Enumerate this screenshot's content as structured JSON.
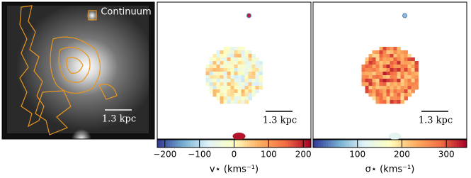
{
  "chart_data": [
    {
      "type": "image",
      "annotation": "Continuum",
      "scale_bar": "1.3 kpc"
    },
    {
      "type": "colormap",
      "scale_bar": "1.3 kpc",
      "colorbar_label": "v⋆ (kms⁻¹)",
      "colormap": [
        "#313695",
        "#74add1",
        "#e0f3f8",
        "#ffffbf",
        "#fdae61",
        "#f46d43",
        "#a50026"
      ],
      "xlim": [
        -222,
        222
      ],
      "xticks": [
        {
          "value": -200,
          "label": "−200"
        },
        {
          "value": -100,
          "label": "−100"
        },
        0,
        100,
        200
      ]
    },
    {
      "type": "colormap",
      "scale_bar": "1.3 kpc",
      "colorbar_label": "σ⋆ (kms⁻¹)",
      "colormap": [
        "#313695",
        "#74add1",
        "#e0f3f8",
        "#ffffbf",
        "#fdae61",
        "#f46d43",
        "#a50026"
      ],
      "xlim": [
        0,
        346
      ],
      "xticks": [
        100,
        200,
        300
      ]
    }
  ]
}
